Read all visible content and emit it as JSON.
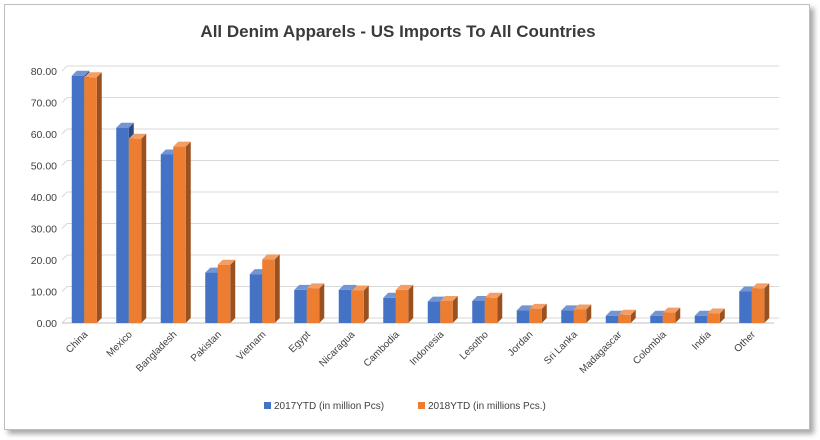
{
  "chart_data": {
    "type": "bar",
    "title": "All Denim Apparels - US Imports To All Countries",
    "categories": [
      "China",
      "Mexico",
      "Bangladesh",
      "Pakistan",
      "Vietnam",
      "Egypt",
      "Nicaragua",
      "Cambodia",
      "Indonesia",
      "Lesotho",
      "Jordan",
      "Sri Lanka",
      "Madagascar",
      "Colombia",
      "India",
      "Other"
    ],
    "series": [
      {
        "name": "2017YTD  (in million Pcs)",
        "color": "#4472c4",
        "values": [
          78.5,
          62.0,
          53.5,
          16.0,
          15.5,
          10.5,
          10.5,
          8.0,
          6.8,
          7.0,
          4.0,
          4.0,
          2.3,
          2.3,
          2.3,
          10.0
        ]
      },
      {
        "name": "2018YTD  (in millions Pcs.)",
        "color": "#ed7d31",
        "values": [
          78.0,
          58.5,
          56.0,
          18.5,
          20.2,
          11.0,
          10.3,
          10.5,
          7.0,
          8.0,
          4.5,
          4.3,
          2.6,
          3.3,
          3.0,
          11.0
        ]
      }
    ],
    "yticks": [
      "0.00",
      "10.00",
      "20.00",
      "30.00",
      "40.00",
      "50.00",
      "60.00",
      "70.00",
      "80.00"
    ],
    "ylim": [
      0,
      80
    ],
    "grid": true,
    "legend": "bottom"
  }
}
